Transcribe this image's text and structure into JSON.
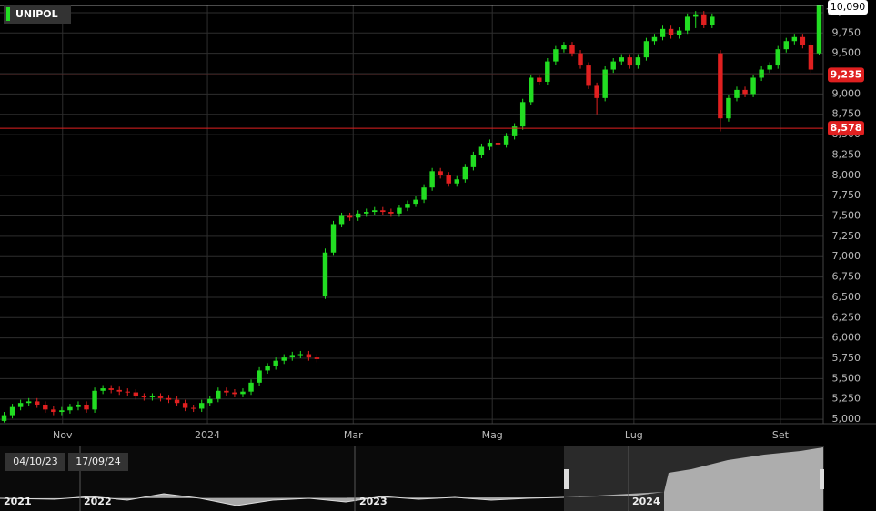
{
  "chart_data": {
    "type": "candlestick",
    "title": "UNIPOL",
    "up_color": "#22dd22",
    "down_color": "#e02020",
    "grid": true,
    "xlim": [
      -0.5,
      99.5
    ],
    "xticks": [
      {
        "value": 7.1,
        "label": "Nov"
      },
      {
        "value": 24.7,
        "label": "2024"
      },
      {
        "value": 42.4,
        "label": "Mar"
      },
      {
        "value": 59.3,
        "label": "Mag"
      },
      {
        "value": 76.5,
        "label": "Lug"
      },
      {
        "value": 94.3,
        "label": "Set"
      }
    ],
    "ylim": [
      4945,
      10100
    ],
    "yticks": [
      {
        "value": 5000,
        "label": "5,000"
      },
      {
        "value": 5250,
        "label": "5,250"
      },
      {
        "value": 5500,
        "label": "5,500"
      },
      {
        "value": 5750,
        "label": "5,750"
      },
      {
        "value": 6000,
        "label": "6,000"
      },
      {
        "value": 6250,
        "label": "6,250"
      },
      {
        "value": 6500,
        "label": "6,500"
      },
      {
        "value": 6750,
        "label": "6,750"
      },
      {
        "value": 7000,
        "label": "7,000"
      },
      {
        "value": 7250,
        "label": "7,250"
      },
      {
        "value": 7500,
        "label": "7,500"
      },
      {
        "value": 7750,
        "label": "7,750"
      },
      {
        "value": 8000,
        "label": "8,000"
      },
      {
        "value": 8250,
        "label": "8,250"
      },
      {
        "value": 8500,
        "label": "8,500"
      },
      {
        "value": 8750,
        "label": "8,750"
      },
      {
        "value": 9000,
        "label": "9,000"
      },
      {
        "value": 9250,
        "label": "9,250"
      },
      {
        "value": 9500,
        "label": "9,500"
      },
      {
        "value": 9750,
        "label": "9,750"
      },
      {
        "value": 10000,
        "label": "10,000"
      }
    ],
    "open": [
      4980,
      5050,
      5150,
      5200,
      5220,
      5180,
      5120,
      5090,
      5110,
      5150,
      5180,
      5120,
      5350,
      5380,
      5360,
      5340,
      5330,
      5280,
      5270,
      5280,
      5260,
      5240,
      5200,
      5140,
      5130,
      5200,
      5250,
      5350,
      5330,
      5310,
      5340,
      5450,
      5600,
      5650,
      5720,
      5760,
      5790,
      5800,
      5760,
      6520,
      7050,
      7400,
      7500,
      7480,
      7530,
      7550,
      7570,
      7550,
      7530,
      7600,
      7650,
      7700,
      7850,
      8050,
      8000,
      7900,
      7950,
      8100,
      8250,
      8350,
      8400,
      8380,
      8480,
      8600,
      8900,
      9200,
      9150,
      9400,
      9550,
      9600,
      9500,
      9350,
      9100,
      8950,
      9300,
      9400,
      9450,
      9350,
      9450,
      9650,
      9700,
      9800,
      9720,
      9780,
      9950,
      9980,
      9850,
      9500,
      8700,
      8950,
      9050,
      9000,
      9200,
      9300,
      9350,
      9550,
      9650,
      9700,
      9600,
      9500
    ],
    "high": [
      5090,
      5190,
      5240,
      5260,
      5260,
      5220,
      5160,
      5150,
      5190,
      5220,
      5220,
      5390,
      5420,
      5420,
      5400,
      5380,
      5370,
      5320,
      5320,
      5320,
      5300,
      5280,
      5240,
      5180,
      5240,
      5290,
      5390,
      5390,
      5370,
      5380,
      5490,
      5640,
      5690,
      5760,
      5800,
      5830,
      5840,
      5840,
      5800,
      7100,
      7440,
      7540,
      7540,
      7570,
      7590,
      7610,
      7610,
      7590,
      7640,
      7690,
      7740,
      7890,
      8090,
      8090,
      8040,
      7990,
      8140,
      8290,
      8390,
      8440,
      8440,
      8520,
      8640,
      8940,
      9240,
      9240,
      9440,
      9590,
      9640,
      9640,
      9540,
      9390,
      9140,
      9340,
      9440,
      9490,
      9490,
      9490,
      9690,
      9740,
      9840,
      9840,
      9820,
      9990,
      10020,
      10020,
      9990,
      9540,
      8990,
      9090,
      9090,
      9240,
      9340,
      9390,
      9590,
      9690,
      9740,
      9740,
      9640,
      10090
    ],
    "low": [
      4960,
      5010,
      5110,
      5160,
      5140,
      5080,
      5050,
      5050,
      5070,
      5110,
      5080,
      5080,
      5310,
      5320,
      5300,
      5290,
      5240,
      5230,
      5230,
      5220,
      5200,
      5160,
      5100,
      5090,
      5090,
      5160,
      5210,
      5290,
      5270,
      5270,
      5300,
      5410,
      5560,
      5610,
      5680,
      5720,
      5750,
      5720,
      5700,
      6480,
      7010,
      7360,
      7440,
      7440,
      7490,
      7510,
      7510,
      7490,
      7490,
      7560,
      7610,
      7660,
      7810,
      7960,
      7860,
      7860,
      7910,
      8060,
      8210,
      8310,
      8340,
      8340,
      8440,
      8560,
      8860,
      9110,
      9110,
      9360,
      9510,
      9460,
      9310,
      9060,
      8750,
      8910,
      9260,
      9360,
      9310,
      9310,
      9410,
      9610,
      9660,
      9680,
      9680,
      9740,
      9810,
      9810,
      9810,
      8540,
      8660,
      8910,
      8960,
      8960,
      9160,
      9260,
      9310,
      9510,
      9610,
      9560,
      9260,
      9480
    ],
    "close": [
      5050,
      5150,
      5200,
      5220,
      5180,
      5120,
      5090,
      5110,
      5150,
      5180,
      5120,
      5350,
      5380,
      5360,
      5340,
      5330,
      5280,
      5270,
      5280,
      5260,
      5240,
      5200,
      5140,
      5130,
      5200,
      5250,
      5350,
      5330,
      5310,
      5340,
      5450,
      5600,
      5650,
      5720,
      5760,
      5790,
      5800,
      5760,
      5740,
      7050,
      7400,
      7500,
      7480,
      7530,
      7550,
      7570,
      7550,
      7530,
      7600,
      7650,
      7700,
      7850,
      8050,
      8000,
      7900,
      7950,
      8100,
      8250,
      8350,
      8400,
      8380,
      8480,
      8600,
      8900,
      9200,
      9150,
      9400,
      9550,
      9600,
      9500,
      9350,
      9100,
      8950,
      9300,
      9400,
      9450,
      9350,
      9450,
      9650,
      9700,
      9800,
      9720,
      9780,
      9950,
      9980,
      9850,
      9950,
      8700,
      8950,
      9050,
      9000,
      9200,
      9300,
      9350,
      9550,
      9650,
      9700,
      9600,
      9300,
      10090
    ],
    "price_lines": [
      {
        "value": 9235,
        "label": "9,235",
        "color": "#e02020"
      },
      {
        "value": 8578,
        "label": "8,578",
        "color": "#e02020"
      }
    ],
    "last_price": {
      "value": 10090,
      "label": "10,090"
    },
    "navigator": {
      "from": "04/10/23",
      "to": "17/09/24",
      "years": [
        "2021",
        "2022",
        "2023",
        "2024"
      ]
    }
  }
}
